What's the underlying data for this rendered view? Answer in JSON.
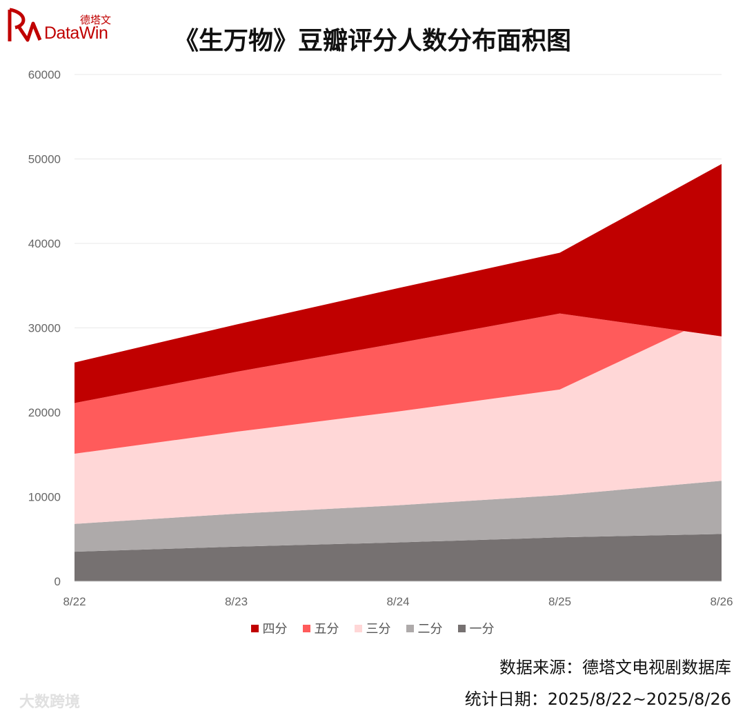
{
  "logo": {
    "cn": "德塔文",
    "en": "DataWin"
  },
  "title": "《生万物》豆瓣评分人数分布面积图",
  "source": "数据来源：德塔文电视剧数据库",
  "period": "统计日期：2025/8/22~2025/8/26",
  "watermark": "大数跨境",
  "chart_data": {
    "type": "area",
    "stacked": true,
    "title": "《生万物》豆瓣评分人数分布面积图",
    "xlabel": "",
    "ylabel": "",
    "categories": [
      "8/22",
      "8/23",
      "8/24",
      "8/25",
      "8/26"
    ],
    "ylim": [
      0,
      60000
    ],
    "yticks": [
      0,
      10000,
      20000,
      30000,
      40000,
      50000,
      60000
    ],
    "grid": true,
    "legend": "bottom",
    "series": [
      {
        "name": "一分",
        "color": "#767171",
        "values": [
          3500,
          4100,
          4600,
          5200,
          5600
        ]
      },
      {
        "name": "二分",
        "color": "#aeaaaa",
        "values": [
          3300,
          3900,
          4400,
          5000,
          6300
        ]
      },
      {
        "name": "三分",
        "color": "#ffd7d7",
        "values": [
          8300,
          9700,
          11100,
          12500,
          19800
        ]
      },
      {
        "name": "五分",
        "color": "#ff5b5b",
        "values": [
          6000,
          7100,
          8100,
          9000,
          -2700
        ]
      },
      {
        "name": "四分",
        "color": "#c00000",
        "values": [
          4800,
          5600,
          6500,
          7200,
          20400
        ]
      }
    ],
    "legend_order": [
      "四分",
      "五分",
      "三分",
      "二分",
      "一分"
    ]
  }
}
